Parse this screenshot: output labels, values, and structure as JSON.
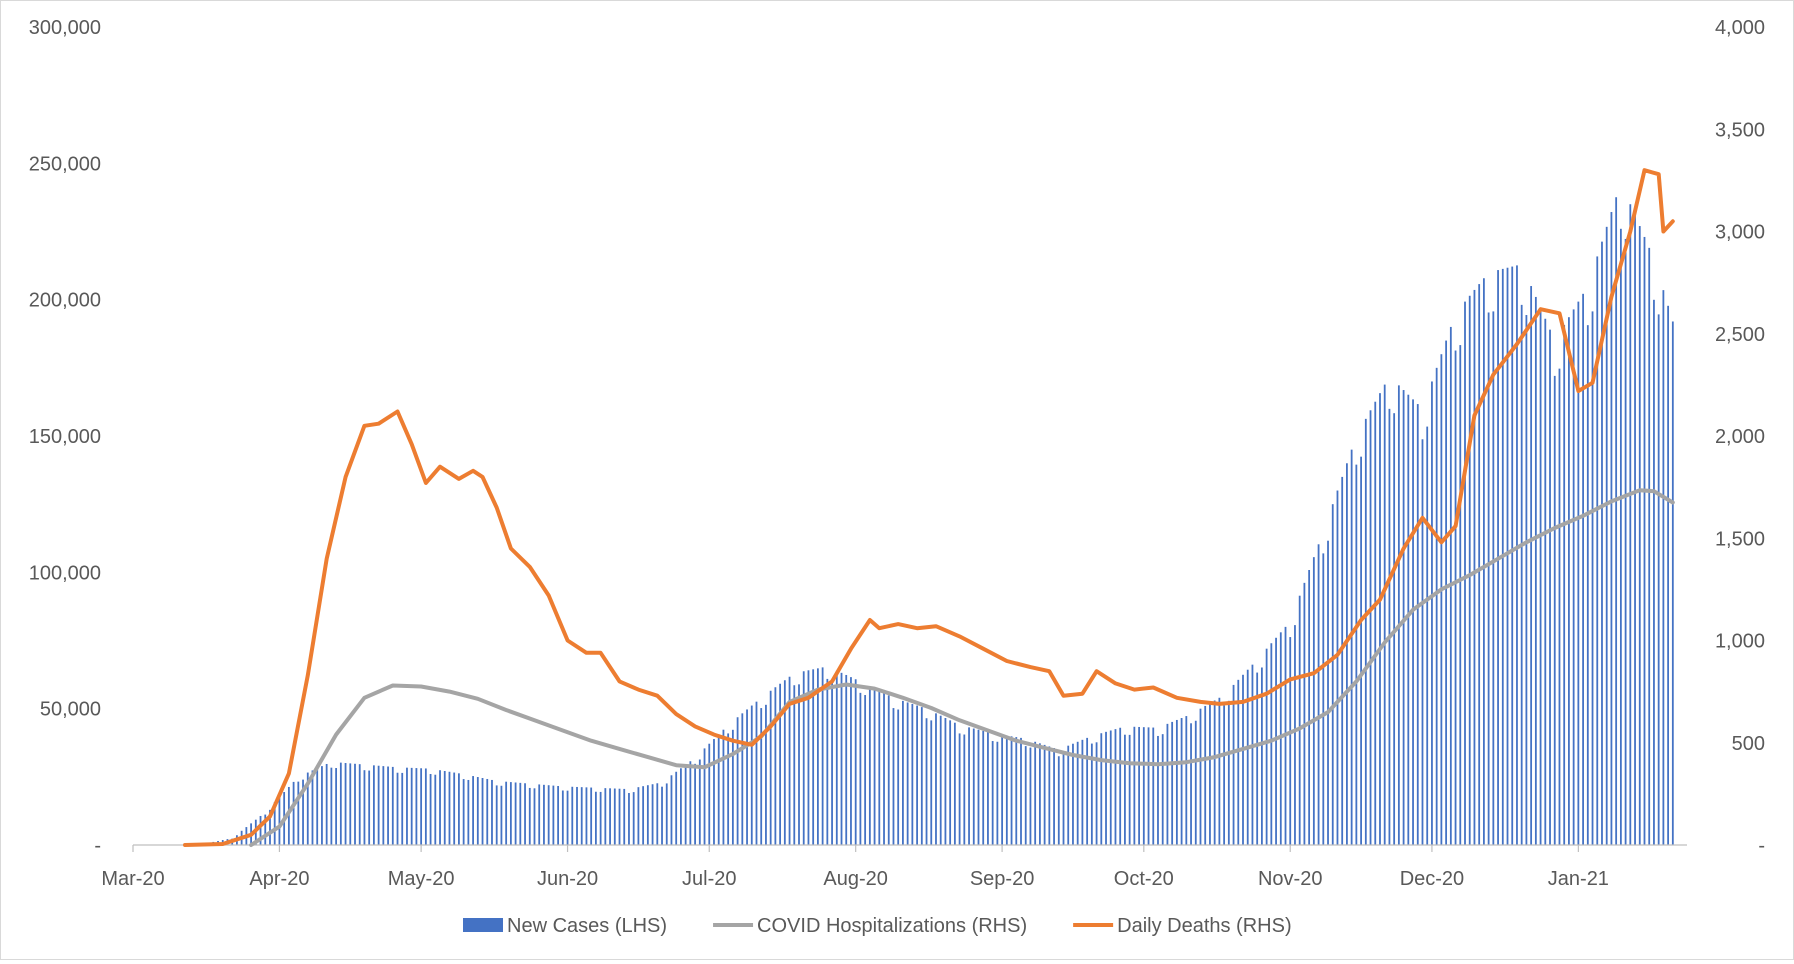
{
  "chart_data": {
    "type": "bar+line",
    "title": "",
    "xlabel": "",
    "ylabel_left": "",
    "ylabel_right": "",
    "x_ticks": [
      "Mar-20",
      "Apr-20",
      "May-20",
      "Jun-20",
      "Jul-20",
      "Aug-20",
      "Sep-20",
      "Oct-20",
      "Nov-20",
      "Dec-20",
      "Jan-21"
    ],
    "y_left": {
      "lim": [
        0,
        300000
      ],
      "ticks": [
        0,
        50000,
        100000,
        150000,
        200000,
        250000,
        300000
      ],
      "tick_labels": [
        "-",
        "50,000",
        "100,000",
        "150,000",
        "200,000",
        "250,000",
        "300,000"
      ]
    },
    "y_right": {
      "lim": [
        0,
        4000
      ],
      "ticks": [
        0,
        500,
        1000,
        1500,
        2000,
        2500,
        3000,
        3500,
        4000
      ],
      "tick_labels": [
        "-",
        "500",
        "1,000",
        "1,500",
        "2,000",
        "2,500",
        "3,000",
        "3,500",
        "4,000"
      ]
    },
    "grid": false,
    "legend_position": "bottom",
    "series": [
      {
        "name": "New Cases (LHS)",
        "type": "bar",
        "axis": "left",
        "color": "#4472C4",
        "points": [
          [
            "2020-03-15",
            100
          ],
          [
            "2020-03-22",
            2500
          ],
          [
            "2020-03-29",
            12000
          ],
          [
            "2020-04-05",
            25000
          ],
          [
            "2020-04-12",
            30500
          ],
          [
            "2020-04-19",
            29500
          ],
          [
            "2020-04-26",
            28500
          ],
          [
            "2020-05-03",
            28000
          ],
          [
            "2020-05-10",
            26000
          ],
          [
            "2020-05-17",
            23500
          ],
          [
            "2020-05-24",
            22500
          ],
          [
            "2020-05-31",
            21500
          ],
          [
            "2020-06-07",
            21000
          ],
          [
            "2020-06-14",
            20500
          ],
          [
            "2020-06-21",
            23000
          ],
          [
            "2020-06-28",
            32000
          ],
          [
            "2020-07-05",
            44000
          ],
          [
            "2020-07-12",
            54000
          ],
          [
            "2020-07-19",
            63000
          ],
          [
            "2020-07-26",
            65500
          ],
          [
            "2020-08-02",
            60000
          ],
          [
            "2020-08-09",
            54000
          ],
          [
            "2020-08-16",
            50000
          ],
          [
            "2020-08-23",
            44000
          ],
          [
            "2020-08-30",
            41000
          ],
          [
            "2020-09-06",
            39000
          ],
          [
            "2020-09-13",
            35000
          ],
          [
            "2020-09-20",
            40000
          ],
          [
            "2020-09-27",
            43500
          ],
          [
            "2020-10-04",
            43000
          ],
          [
            "2020-10-11",
            48000
          ],
          [
            "2020-10-18",
            55000
          ],
          [
            "2020-10-25",
            68000
          ],
          [
            "2020-11-01",
            82000
          ],
          [
            "2020-11-08",
            115000
          ],
          [
            "2020-11-15",
            150000
          ],
          [
            "2020-11-22",
            172000
          ],
          [
            "2020-11-29",
            160000
          ],
          [
            "2020-12-06",
            195000
          ],
          [
            "2020-12-13",
            210000
          ],
          [
            "2020-12-20",
            213000
          ],
          [
            "2020-12-27",
            185000
          ],
          [
            "2021-01-03",
            205000
          ],
          [
            "2021-01-10",
            243000
          ],
          [
            "2021-01-17",
            215000
          ],
          [
            "2021-01-21",
            192000
          ]
        ]
      },
      {
        "name": "COVID Hospitalizations (RHS)",
        "type": "line",
        "axis": "right",
        "color": "#A5A5A5",
        "points": [
          [
            "2020-03-26",
            0
          ],
          [
            "2020-04-01",
            90
          ],
          [
            "2020-04-07",
            300
          ],
          [
            "2020-04-13",
            540
          ],
          [
            "2020-04-19",
            720
          ],
          [
            "2020-04-25",
            780
          ],
          [
            "2020-05-01",
            775
          ],
          [
            "2020-05-07",
            750
          ],
          [
            "2020-05-13",
            715
          ],
          [
            "2020-05-19",
            660
          ],
          [
            "2020-05-25",
            610
          ],
          [
            "2020-05-31",
            560
          ],
          [
            "2020-06-06",
            510
          ],
          [
            "2020-06-12",
            470
          ],
          [
            "2020-06-18",
            430
          ],
          [
            "2020-06-24",
            390
          ],
          [
            "2020-06-30",
            380
          ],
          [
            "2020-07-06",
            445
          ],
          [
            "2020-07-12",
            530
          ],
          [
            "2020-07-18",
            700
          ],
          [
            "2020-07-24",
            760
          ],
          [
            "2020-07-30",
            785
          ],
          [
            "2020-08-05",
            765
          ],
          [
            "2020-08-11",
            720
          ],
          [
            "2020-08-17",
            670
          ],
          [
            "2020-08-23",
            610
          ],
          [
            "2020-08-29",
            560
          ],
          [
            "2020-09-04",
            510
          ],
          [
            "2020-09-10",
            475
          ],
          [
            "2020-09-16",
            440
          ],
          [
            "2020-09-22",
            415
          ],
          [
            "2020-09-28",
            400
          ],
          [
            "2020-10-04",
            395
          ],
          [
            "2020-10-10",
            405
          ],
          [
            "2020-10-16",
            430
          ],
          [
            "2020-10-22",
            470
          ],
          [
            "2020-10-28",
            510
          ],
          [
            "2020-11-03",
            570
          ],
          [
            "2020-11-09",
            650
          ],
          [
            "2020-11-15",
            800
          ],
          [
            "2020-11-21",
            990
          ],
          [
            "2020-11-27",
            1150
          ],
          [
            "2020-12-03",
            1250
          ],
          [
            "2020-12-09",
            1320
          ],
          [
            "2020-12-15",
            1400
          ],
          [
            "2020-12-21",
            1480
          ],
          [
            "2020-12-27",
            1550
          ],
          [
            "2021-01-02",
            1610
          ],
          [
            "2021-01-08",
            1680
          ],
          [
            "2021-01-14",
            1735
          ],
          [
            "2021-01-17",
            1730
          ],
          [
            "2021-01-21",
            1675
          ]
        ]
      },
      {
        "name": "Daily Deaths (RHS)",
        "type": "line",
        "axis": "right",
        "color": "#ED7D31",
        "points": [
          [
            "2020-03-12",
            0
          ],
          [
            "2020-03-20",
            5
          ],
          [
            "2020-03-26",
            50
          ],
          [
            "2020-03-30",
            140
          ],
          [
            "2020-04-03",
            350
          ],
          [
            "2020-04-07",
            830
          ],
          [
            "2020-04-11",
            1400
          ],
          [
            "2020-04-15",
            1800
          ],
          [
            "2020-04-19",
            2050
          ],
          [
            "2020-04-22",
            2060
          ],
          [
            "2020-04-26",
            2120
          ],
          [
            "2020-04-29",
            1960
          ],
          [
            "2020-05-02",
            1770
          ],
          [
            "2020-05-05",
            1850
          ],
          [
            "2020-05-09",
            1790
          ],
          [
            "2020-05-12",
            1830
          ],
          [
            "2020-05-14",
            1800
          ],
          [
            "2020-05-17",
            1650
          ],
          [
            "2020-05-20",
            1450
          ],
          [
            "2020-05-24",
            1360
          ],
          [
            "2020-05-28",
            1220
          ],
          [
            "2020-06-01",
            1000
          ],
          [
            "2020-06-05",
            940
          ],
          [
            "2020-06-08",
            940
          ],
          [
            "2020-06-12",
            800
          ],
          [
            "2020-06-16",
            760
          ],
          [
            "2020-06-20",
            730
          ],
          [
            "2020-06-24",
            640
          ],
          [
            "2020-06-28",
            580
          ],
          [
            "2020-07-02",
            540
          ],
          [
            "2020-07-06",
            510
          ],
          [
            "2020-07-10",
            490
          ],
          [
            "2020-07-14",
            580
          ],
          [
            "2020-07-18",
            690
          ],
          [
            "2020-07-22",
            720
          ],
          [
            "2020-07-27",
            800
          ],
          [
            "2020-07-31",
            960
          ],
          [
            "2020-08-04",
            1100
          ],
          [
            "2020-08-06",
            1060
          ],
          [
            "2020-08-10",
            1080
          ],
          [
            "2020-08-14",
            1060
          ],
          [
            "2020-08-18",
            1070
          ],
          [
            "2020-08-23",
            1020
          ],
          [
            "2020-08-28",
            960
          ],
          [
            "2020-09-02",
            900
          ],
          [
            "2020-09-07",
            870
          ],
          [
            "2020-09-11",
            850
          ],
          [
            "2020-09-14",
            730
          ],
          [
            "2020-09-18",
            740
          ],
          [
            "2020-09-21",
            850
          ],
          [
            "2020-09-25",
            790
          ],
          [
            "2020-09-29",
            760
          ],
          [
            "2020-10-03",
            770
          ],
          [
            "2020-10-08",
            720
          ],
          [
            "2020-10-13",
            700
          ],
          [
            "2020-10-17",
            690
          ],
          [
            "2020-10-22",
            700
          ],
          [
            "2020-10-27",
            740
          ],
          [
            "2020-11-01",
            810
          ],
          [
            "2020-11-06",
            840
          ],
          [
            "2020-11-11",
            930
          ],
          [
            "2020-11-16",
            1100
          ],
          [
            "2020-11-20",
            1200
          ],
          [
            "2020-11-25",
            1450
          ],
          [
            "2020-11-29",
            1600
          ],
          [
            "2020-12-03",
            1480
          ],
          [
            "2020-12-06",
            1560
          ],
          [
            "2020-12-10",
            2100
          ],
          [
            "2020-12-14",
            2300
          ],
          [
            "2020-12-19",
            2450
          ],
          [
            "2020-12-24",
            2620
          ],
          [
            "2020-12-28",
            2600
          ],
          [
            "2021-01-01",
            2220
          ],
          [
            "2021-01-04",
            2260
          ],
          [
            "2021-01-08",
            2680
          ],
          [
            "2021-01-12",
            3000
          ],
          [
            "2021-01-15",
            3300
          ],
          [
            "2021-01-18",
            3280
          ],
          [
            "2021-01-19",
            3000
          ],
          [
            "2021-01-21",
            3050
          ]
        ]
      }
    ]
  }
}
